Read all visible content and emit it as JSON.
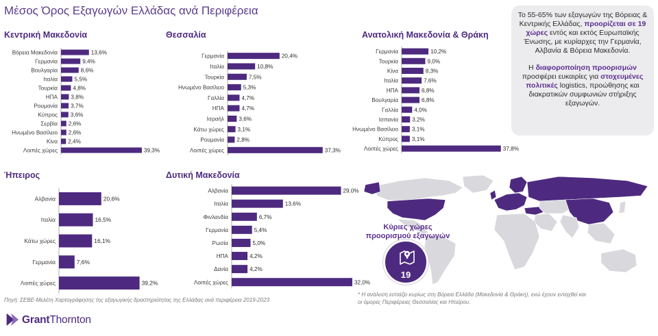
{
  "title": "Μέσος Όρος Εξαγωγών Ελλάδας ανά Περιφέρεια",
  "colors": {
    "bar": "#4d2a7f",
    "accent": "#5b2d91",
    "map_highlight": "#4d2a7f",
    "map_base": "#d9d9dd"
  },
  "chart_data": [
    {
      "type": "bar",
      "orientation": "horizontal",
      "title": "Κεντρική Μακεδονία",
      "categories": [
        "Βόρεια Μακεδονία",
        "Γερμανία",
        "Βουλγαρία",
        "Ιταλία",
        "Τουρκία",
        "ΗΠΑ",
        "Ρουμανία",
        "Κύπρος",
        "Σερβία",
        "Ηνωμένο Βασίλειο",
        "Κίνα",
        "Λοιπές χώρες"
      ],
      "values": [
        13.6,
        9.4,
        8.6,
        5.5,
        4.8,
        3.8,
        3.7,
        3.6,
        2.6,
        2.6,
        2.4,
        39.3
      ],
      "labels": [
        "13,6%",
        "9,4%",
        "8,6%",
        "5,5%",
        "4,8%",
        "3,8%",
        "3,7%",
        "3,6%",
        "2,6%",
        "2,6%",
        "2,4%",
        "39,3%"
      ],
      "unit": "%"
    },
    {
      "type": "bar",
      "orientation": "horizontal",
      "title": "Θεσσαλία",
      "categories": [
        "Γερμανία",
        "Ιταλία",
        "Τουρκία",
        "Ηνωμένο Βασίλειο",
        "Γαλλία",
        "ΗΠΑ",
        "Ισραήλ",
        "Κάτω χώρες",
        "Ρουμανία",
        "Λοιπές χώρες"
      ],
      "values": [
        20.4,
        10.8,
        7.5,
        5.3,
        4.7,
        4.7,
        3.6,
        3.1,
        2.8,
        37.3
      ],
      "labels": [
        "20,4%",
        "10,8%",
        "7,5%",
        "5,3%",
        "4,7%",
        "4,7%",
        "3,6%",
        "3,1%",
        "2,8%",
        "37,3%"
      ],
      "unit": "%"
    },
    {
      "type": "bar",
      "orientation": "horizontal",
      "title": "Ανατολική Μακεδονία & Θράκη",
      "categories": [
        "Γερμανία",
        "Τουρκία",
        "Κίνα",
        "Ιταλία",
        "ΗΠΑ",
        "Βουλγαρία",
        "Γαλλία",
        "Ισπανία",
        "Ηνωμένο Βασίλειο",
        "Κύπρος",
        "Λοιπές χώρες"
      ],
      "values": [
        10.2,
        9.0,
        8.3,
        7.6,
        6.8,
        6.8,
        4.0,
        3.2,
        3.1,
        3.1,
        37.8
      ],
      "labels": [
        "10,2%",
        "9,0%",
        "8,3%",
        "7,6%",
        "6,8%",
        "6,8%",
        "4,0%",
        "3,2%",
        "3,1%",
        "3,1%",
        "37,8%"
      ],
      "unit": "%"
    },
    {
      "type": "bar",
      "orientation": "horizontal",
      "title": "Ήπειρος",
      "categories": [
        "Αλβανία",
        "Ιταλία",
        "Κάτω χώρες",
        "Γερμανία",
        "Λοιπές χώρες"
      ],
      "values": [
        20.6,
        16.5,
        16.1,
        7.6,
        39.2
      ],
      "labels": [
        "20,6%",
        "16,5%",
        "16,1%",
        "7,6%",
        "39,2%"
      ],
      "unit": "%"
    },
    {
      "type": "bar",
      "orientation": "horizontal",
      "title": "Δυτική Μακεδονία",
      "categories": [
        "Αλβανία",
        "Ιταλία",
        "Φινλανδία",
        "Γερμανία",
        "Ρωσία",
        "ΗΠΑ",
        "Δανία",
        "Λοιπές χώρες"
      ],
      "values": [
        29.0,
        13.6,
        6.7,
        5.4,
        5.0,
        4.2,
        4.2,
        32.0
      ],
      "labels": [
        "29,0%",
        "13,6%",
        "6,7%",
        "5,4%",
        "5,0%",
        "4,2%",
        "4,2%",
        "32,0%"
      ],
      "unit": "%"
    }
  ],
  "info": {
    "p1_pre": "Το 55-65% των εξαγωγών της Βόρειας & Κεντρικής Ελλάδας,",
    "p1_hl": "προορίζεται σε 19 χώρες",
    "p1_post": "εντός και εκτός Ευρωπαϊκής Ένωσης, με κυρίαρχες την Γερμανία, Αλβανία & Βόρεια Μακεδονία.",
    "p2_pre": "Η",
    "p2_hl1": "διαφοροποίηση προορισμών",
    "p2_mid": "προσφέρει ευκαιρίες για",
    "p2_hl2": "στοχευμένες πολιτικές",
    "p2_post": "logistics, προώθησης και διακρατικών συμφωνιών στήριξης εξαγωγών."
  },
  "destinations": {
    "label": "Κύριες χώρες προορισμού εξαγωγών",
    "count": "19",
    "icon": "map-pin-icon"
  },
  "source": "Πηγή: ΣΕΒΕ-Μελέτη Χαρτογράφησης της εξαγωγικής δραστηριότητας της Ελλάδας ανά περιφέρεια 2019-2023",
  "footnote": "* Η ανάλυση εστιάζει κυρίως στη Βόρεια Ελλάδα (Μακεδονία & Θράκη), ενώ έχουν ενταχθεί και οι όμορες Περιφέρειες Θεσσαλίας και Ηπείρου.",
  "logo": {
    "name_bold": "Grant",
    "name_rest": "Thornton",
    "icon": "grant-thornton-logo-icon"
  }
}
